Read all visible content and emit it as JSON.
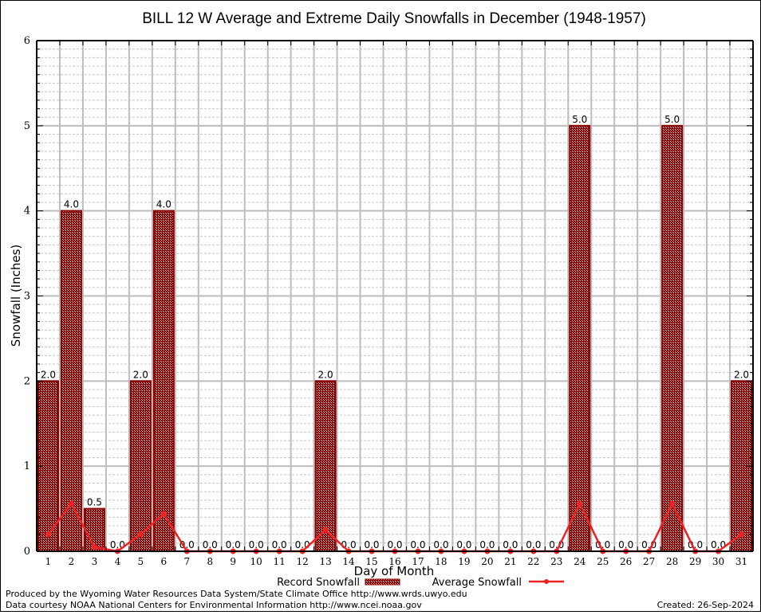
{
  "chart_data": {
    "type": "bar",
    "title": "BILL 12 W Average and Extreme Daily Snowfalls in December (1948-1957)",
    "xlabel": "Day of Month",
    "ylabel": "Snowfall (Inches)",
    "ylim": [
      0,
      6
    ],
    "yticks": [
      "0",
      "1",
      "2",
      "3",
      "4",
      "5",
      "6"
    ],
    "grid": true,
    "legend_position": "bottom-center",
    "categories": [
      "1",
      "2",
      "3",
      "4",
      "5",
      "6",
      "7",
      "8",
      "9",
      "10",
      "11",
      "12",
      "13",
      "14",
      "15",
      "16",
      "17",
      "18",
      "19",
      "20",
      "21",
      "22",
      "23",
      "24",
      "25",
      "26",
      "27",
      "28",
      "29",
      "30",
      "31"
    ],
    "series": [
      {
        "name": "Record Snowfall",
        "kind": "bar",
        "color": "#8b0000",
        "values": [
          2.0,
          4.0,
          0.5,
          0.0,
          2.0,
          4.0,
          0.0,
          0.0,
          0.0,
          0.0,
          0.0,
          0.0,
          2.0,
          0.0,
          0.0,
          0.0,
          0.0,
          0.0,
          0.0,
          0.0,
          0.0,
          0.0,
          0.0,
          5.0,
          0.0,
          0.0,
          0.0,
          5.0,
          0.0,
          0.0,
          2.0
        ],
        "labels": [
          "2.0",
          "4.0",
          "0.5",
          "0.0",
          "2.0",
          "4.0",
          "0.0",
          "0.0",
          "0.0",
          "0.0",
          "0.0",
          "0.0",
          "2.0",
          "0.0",
          "0.0",
          "0.0",
          "0.0",
          "0.0",
          "0.0",
          "0.0",
          "0.0",
          "0.0",
          "0.0",
          "5.0",
          "0.0",
          "0.0",
          "0.0",
          "5.0",
          "0.0",
          "0.0",
          "2.0"
        ]
      },
      {
        "name": "Average Snowfall",
        "kind": "line",
        "color": "#ee2222",
        "values": [
          0.2,
          0.56,
          0.05,
          0.0,
          0.2,
          0.44,
          0.0,
          0.0,
          0.0,
          0.0,
          0.0,
          0.0,
          0.25,
          0.0,
          0.0,
          0.0,
          0.0,
          0.0,
          0.0,
          0.0,
          0.0,
          0.0,
          0.0,
          0.56,
          0.0,
          0.0,
          0.0,
          0.56,
          0.0,
          0.0,
          0.2
        ]
      }
    ]
  },
  "footer": {
    "produced_by": "Produced by the Wyoming Water Resources Data System/State Climate Office http://www.wrds.uwyo.edu",
    "data_courtesy": "Data courtesy NOAA National Centers for Environmental Information http://www.ncei.noaa.gov",
    "created": "Created:  26-Sep-2024"
  }
}
